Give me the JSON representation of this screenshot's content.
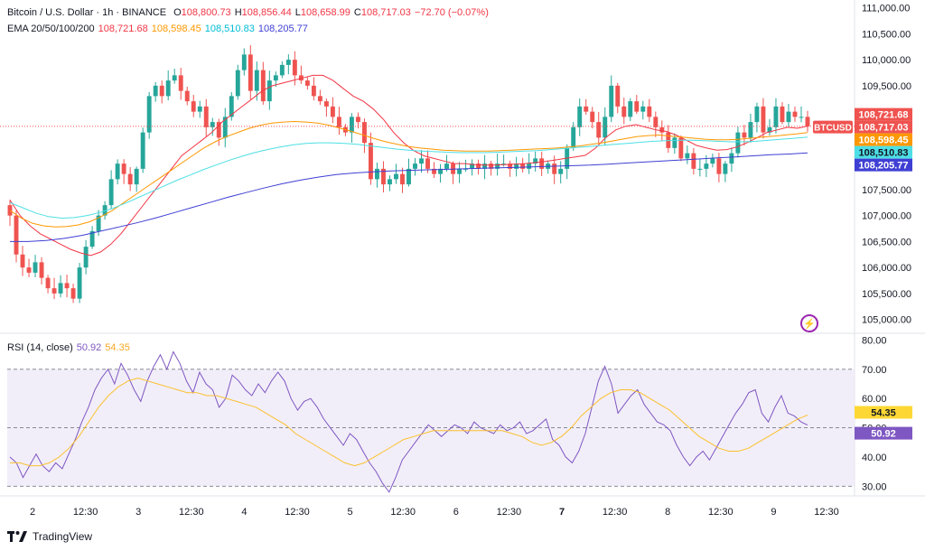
{
  "header": {
    "symbol": "Bitcoin / U.S. Dollar · 1h · BINANCE",
    "o_label": "O",
    "o_value": "108,800.73",
    "h_label": "H",
    "h_value": "108,856.44",
    "l_label": "L",
    "l_value": "108,658.99",
    "c_label": "C",
    "c_value": "108,717.03",
    "change": "−72.70 (−0.07%)"
  },
  "ema_legend": {
    "label": "EMA 20/50/100/200",
    "v20": "108,721.68",
    "v50": "108,598.45",
    "v100": "108,510.83",
    "v200": "108,205.77"
  },
  "rsi_legend": {
    "label": "RSI (14, close)",
    "rsi": "50.92",
    "ma": "54.35"
  },
  "price_labels": {
    "ticker": "BTCUSD",
    "ema20": "108,721.68",
    "close": "108,717.03",
    "ema50": "108,598.45",
    "ema100": "108,510.83",
    "ema200": "108,205.77",
    "rsi": "50.92",
    "rsi_ma": "54.35"
  },
  "footer": {
    "brand": "TradingView"
  },
  "colors": {
    "up": "#26a69a",
    "down": "#ef5350",
    "ema20": "#f23645",
    "ema50": "#ff9800",
    "ema100": "#4ddfe5",
    "ema200": "#3f3fd4",
    "rsi": "#7e57c2",
    "rsi_ma": "#fbc02d",
    "rsi_band": "#ede7f6"
  },
  "chart_data": [
    {
      "type": "candlestick",
      "title": "Bitcoin / U.S. Dollar · 1h · BINANCE",
      "ylim": [
        104750,
        111150
      ],
      "y_ticks": [
        105000,
        105500,
        106000,
        106500,
        107000,
        107500,
        108000,
        108500,
        109000,
        109500,
        110000,
        110500,
        111000
      ],
      "y_tick_labels": [
        "105,000.00",
        "105,500.00",
        "106,000.00",
        "106,500.00",
        "107,000.00",
        "107,500.00",
        "108,000.00",
        "108,500.00",
        "109,000.00",
        "109,500.00",
        "110,000.00",
        "110,500.00",
        "111,000.00"
      ],
      "x_ticks": [
        "2",
        "12:30",
        "3",
        "12:30",
        "4",
        "12:30",
        "5",
        "12:30",
        "6",
        "12:30",
        "7",
        "12:30",
        "8",
        "12:30",
        "9",
        "12:30"
      ],
      "x_tick_bold": [
        "7"
      ],
      "close_values": [
        107000,
        106250,
        106000,
        105900,
        106100,
        105800,
        105600,
        105500,
        105700,
        105600,
        105400,
        106000,
        106400,
        106700,
        107000,
        107200,
        107700,
        108000,
        107800,
        107600,
        107900,
        108600,
        109300,
        109500,
        109300,
        109600,
        109700,
        109400,
        109200,
        109000,
        109100,
        108700,
        108800,
        108500,
        108900,
        109300,
        109800,
        110100,
        109400,
        109800,
        109200,
        109600,
        109700,
        109900,
        110000,
        109700,
        109600,
        109500,
        109300,
        109200,
        109100,
        108900,
        108700,
        108600,
        108900,
        108800,
        108400,
        107700,
        107900,
        107600,
        107700,
        107800,
        107600,
        107900,
        108000,
        108100,
        107900,
        107800,
        107900,
        108000,
        107800,
        107900,
        107900,
        108000,
        107900,
        108000,
        107900,
        108000,
        108000,
        107900,
        108000,
        107900,
        108000,
        108100,
        107900,
        108000,
        107800,
        107900,
        108300,
        108700,
        109100,
        109000,
        108800,
        108500,
        108900,
        109500,
        109100,
        108900,
        109200,
        109000,
        109100,
        108900,
        108700,
        108600,
        108300,
        108500,
        108100,
        108200,
        107900,
        107900,
        108000,
        108100,
        107800,
        108000,
        108200,
        108600,
        108500,
        108800,
        109100,
        108600,
        108700,
        109100,
        108800,
        109000,
        108900,
        108900,
        108717.03
      ],
      "series": [
        {
          "name": "EMA 20",
          "last": 108721.68,
          "values": [
            107300,
            107000,
            106800,
            106650,
            106550,
            106450,
            106350,
            106280,
            106230,
            106300,
            106450,
            106650,
            106900,
            107150,
            107400,
            107650,
            107900,
            108150,
            108300,
            108450,
            108600,
            108800,
            108950,
            109100,
            109250,
            109400,
            109500,
            109550,
            109600,
            109650,
            109700,
            109700,
            109600,
            109450,
            109300,
            109200,
            109050,
            108850,
            108600,
            108400,
            108250,
            108150,
            108100,
            108050,
            108000,
            108000,
            107980,
            107970,
            107970,
            107980,
            107990,
            108000,
            108020,
            108040,
            108070,
            108100,
            108130,
            108160,
            108300,
            108500,
            108650,
            108720,
            108750,
            108700,
            108650,
            108620,
            108550,
            108450,
            108350,
            108300,
            108260,
            108270,
            108320,
            108400,
            108500,
            108600,
            108650,
            108700,
            108680,
            108721.68
          ]
        },
        {
          "name": "EMA 50",
          "last": 108598.45,
          "values": [
            107100,
            106950,
            106850,
            106800,
            106780,
            106790,
            106820,
            106880,
            106980,
            107100,
            107250,
            107400,
            107550,
            107700,
            107850,
            108000,
            108150,
            108300,
            108420,
            108520,
            108600,
            108680,
            108740,
            108780,
            108800,
            108810,
            108800,
            108780,
            108740,
            108680,
            108620,
            108550,
            108480,
            108420,
            108370,
            108330,
            108300,
            108280,
            108260,
            108250,
            108240,
            108240,
            108240,
            108250,
            108260,
            108270,
            108280,
            108290,
            108300,
            108320,
            108340,
            108370,
            108400,
            108440,
            108480,
            108520,
            108540,
            108550,
            108530,
            108510,
            108490,
            108470,
            108460,
            108460,
            108470,
            108490,
            108510,
            108530,
            108550,
            108570,
            108598.45
          ]
        },
        {
          "name": "EMA 100",
          "last": 108510.83,
          "values": [
            107250,
            107150,
            107050,
            106980,
            106950,
            106960,
            107000,
            107060,
            107140,
            107240,
            107350,
            107460,
            107570,
            107680,
            107780,
            107880,
            107970,
            108060,
            108140,
            108210,
            108270,
            108320,
            108360,
            108390,
            108400,
            108400,
            108390,
            108370,
            108340,
            108310,
            108280,
            108260,
            108240,
            108230,
            108220,
            108210,
            108210,
            108210,
            108220,
            108230,
            108240,
            108250,
            108270,
            108290,
            108310,
            108330,
            108350,
            108370,
            108390,
            108410,
            108430,
            108440,
            108450,
            108450,
            108440,
            108430,
            108420,
            108420,
            108430,
            108450,
            108470,
            108490,
            108510.83
          ]
        },
        {
          "name": "EMA 200",
          "last": 108205.77,
          "values": [
            106500,
            106500,
            106520,
            106560,
            106620,
            106700,
            106780,
            106860,
            106950,
            107050,
            107150,
            107250,
            107350,
            107440,
            107530,
            107610,
            107680,
            107740,
            107790,
            107820,
            107840,
            107860,
            107870,
            107880,
            107890,
            107900,
            107910,
            107920,
            107930,
            107940,
            107950,
            107960,
            107970,
            107990,
            108010,
            108030,
            108050,
            108070,
            108090,
            108110,
            108130,
            108150,
            108170,
            108185,
            108205.77
          ]
        }
      ]
    },
    {
      "type": "line",
      "title": "RSI (14, close)",
      "ylim": [
        27,
        82
      ],
      "y_ticks": [
        30,
        40,
        50,
        60,
        70,
        80
      ],
      "y_tick_labels": [
        "30.00",
        "40.00",
        "50.00",
        "60.00",
        "70.00",
        "80.00"
      ],
      "bands": [
        30,
        70
      ],
      "series": [
        {
          "name": "RSI",
          "last": 50.92,
          "values": [
            40,
            38,
            33,
            37,
            41,
            37,
            35,
            38,
            36,
            41,
            46,
            52,
            57,
            63,
            67,
            70,
            65,
            72,
            68,
            63,
            59,
            66,
            71,
            75,
            70,
            76,
            72,
            66,
            62,
            69,
            65,
            63,
            57,
            60,
            68,
            66,
            63,
            61,
            65,
            62,
            66,
            69,
            66,
            60,
            56,
            59,
            60,
            57,
            53,
            50,
            47,
            44,
            48,
            46,
            42,
            38,
            35,
            31,
            28,
            33,
            39,
            42,
            45,
            48,
            51,
            49,
            47,
            49,
            51,
            50,
            48,
            52,
            50,
            49,
            48,
            51,
            49,
            50,
            52,
            48,
            49,
            51,
            53,
            46,
            44,
            40,
            38,
            42,
            48,
            57,
            66,
            71,
            65,
            55,
            58,
            61,
            63,
            58,
            55,
            52,
            51,
            49,
            44,
            40,
            37,
            40,
            42,
            39,
            43,
            47,
            51,
            55,
            58,
            62,
            63,
            55,
            52,
            57,
            61,
            55,
            54,
            52,
            50.92
          ]
        },
        {
          "name": "MA",
          "last": 54.35,
          "values": [
            38,
            38,
            37,
            37,
            38,
            40,
            43,
            47,
            52,
            57,
            61,
            64,
            66,
            67,
            66,
            65,
            64,
            63,
            62,
            62,
            61,
            61,
            60,
            59,
            58,
            57,
            55,
            53,
            51,
            48,
            46,
            44,
            42,
            40,
            38,
            37,
            38,
            40,
            42,
            44,
            46,
            47,
            48,
            49,
            49,
            49,
            49,
            49,
            49,
            49,
            49,
            48,
            47,
            45,
            44,
            45,
            47,
            50,
            54,
            57,
            60,
            62,
            63,
            63,
            62,
            60,
            58,
            56,
            53,
            50,
            47,
            45,
            43,
            42,
            42,
            43,
            45,
            47,
            49,
            51,
            53,
            54.35
          ]
        }
      ]
    }
  ]
}
